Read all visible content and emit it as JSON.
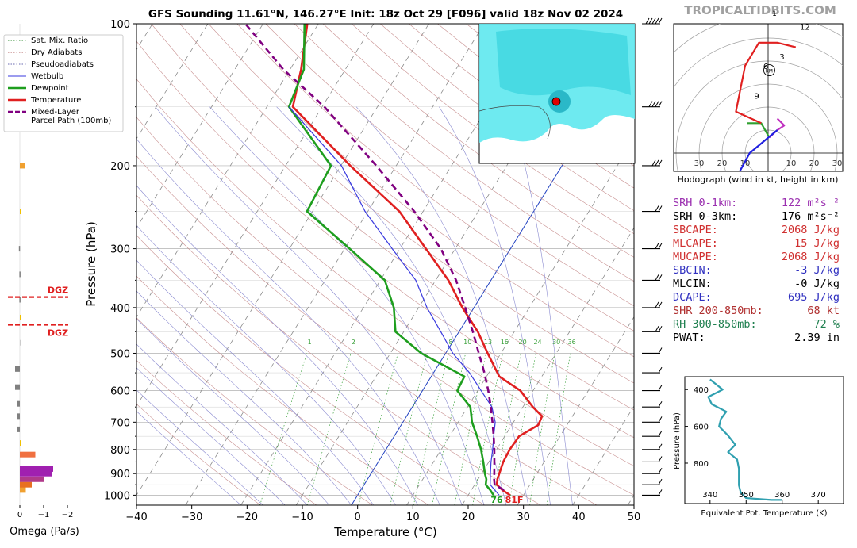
{
  "title": "GFS Sounding 11.61°N, 146.27°E Init: 18z Oct 29 [F096] valid 18z Nov 02 2024",
  "watermark": "TROPICALTIDBITS.COM",
  "legend": [
    {
      "label": "Sat. Mix. Ratio",
      "color": "#2e8b2e",
      "style": "dotted"
    },
    {
      "label": "Dry Adiabats",
      "color": "#b06060",
      "style": "dotted"
    },
    {
      "label": "Pseudoadiabats",
      "color": "#6a6ab0",
      "style": "dotted"
    },
    {
      "label": "Wetbulb",
      "color": "#3a3adf",
      "style": "solid"
    },
    {
      "label": "Dewpoint",
      "color": "#1e9e1e",
      "style": "solid"
    },
    {
      "label": "Temperature",
      "color": "#e02020",
      "style": "solid"
    },
    {
      "label": "Mixed-Layer\nParcel Path (100mb)",
      "color": "#800080",
      "style": "dashed"
    }
  ],
  "omega": {
    "xlabel": "Omega (Pa/s)",
    "ticks": [
      "0",
      "−1",
      "−2"
    ],
    "dgz_label": "DGZ"
  },
  "skewt": {
    "xlabel": "Temperature (°C)",
    "ylabel": "Pressure (hPa)",
    "surface_dewpoint_label": "76",
    "surface_temp_label": "81F",
    "mixing_ratio_labels": [
      "1",
      "2",
      "8",
      "10",
      "13",
      "16",
      "20",
      "24",
      "30",
      "36"
    ]
  },
  "hodograph": {
    "caption": "Hodograph (wind in kt, height in km)",
    "x_ticks": [
      "30",
      "20",
      "10",
      "10",
      "20",
      "30"
    ],
    "height_labels": [
      "12",
      "3",
      "6",
      "9"
    ],
    "top_label": "1",
    "km_label": "KM"
  },
  "stats": [
    {
      "label": "SRH 0-1km:",
      "value": "122 m²s⁻²",
      "color": "#9b30b0"
    },
    {
      "label": "SRH 0-3km:",
      "value": "176 m²s⁻²",
      "color": "#000000"
    },
    {
      "label": "SBCAPE:",
      "value": "2068 J/kg",
      "color": "#d03030"
    },
    {
      "label": "MLCAPE:",
      "value": "15 J/kg",
      "color": "#d03030"
    },
    {
      "label": "MUCAPE:",
      "value": "2068 J/kg",
      "color": "#d03030"
    },
    {
      "label": "SBCIN:",
      "value": "-3 J/kg",
      "color": "#3030c0"
    },
    {
      "label": "MLCIN:",
      "value": "-0 J/kg",
      "color": "#000000"
    },
    {
      "label": "DCAPE:",
      "value": "695 J/kg",
      "color": "#3030c0"
    },
    {
      "label": "SHR 200-850mb:",
      "value": "68 kt",
      "color": "#b03030"
    },
    {
      "label": "RH 300-850mb:",
      "value": "72 %",
      "color": "#208050"
    },
    {
      "label": "PWAT:",
      "value": "2.39 in",
      "color": "#000000"
    }
  ],
  "theta_e": {
    "xlabel": "Equivalent Pot. Temperature (K)",
    "ylabel": "Pressure (hPa)"
  },
  "chart_data": [
    {
      "type": "line",
      "name": "skew-t",
      "xlabel": "Temperature (°C)",
      "ylabel": "Pressure (hPa)",
      "x_ticks": [
        -40,
        -30,
        -20,
        -10,
        0,
        10,
        20,
        30,
        40,
        50
      ],
      "y_ticks": [
        100,
        200,
        300,
        400,
        500,
        600,
        700,
        800,
        900,
        1000
      ],
      "xlim": [
        -40,
        50
      ],
      "ylim": [
        1050,
        100
      ],
      "y_scale": "log",
      "series": [
        {
          "name": "Temperature",
          "color": "#e02020",
          "points": [
            [
              1000,
              27.6
            ],
            [
              975,
              25.6
            ],
            [
              950,
              24.0
            ],
            [
              925,
              23.5
            ],
            [
              900,
              23.2
            ],
            [
              850,
              22.6
            ],
            [
              800,
              22.4
            ],
            [
              750,
              22.6
            ],
            [
              710,
              24.8
            ],
            [
              680,
              24.5
            ],
            [
              650,
              21.8
            ],
            [
              600,
              17.7
            ],
            [
              560,
              12.3
            ],
            [
              500,
              7.6
            ],
            [
              450,
              3.4
            ],
            [
              400,
              -2.1
            ],
            [
              350,
              -7.7
            ],
            [
              300,
              -15.3
            ],
            [
              250,
              -24.3
            ],
            [
              200,
              -38.3
            ],
            [
              150,
              -55.3
            ],
            [
              125,
              -58.0
            ],
            [
              100,
              -62.0
            ]
          ]
        },
        {
          "name": "Dewpoint",
          "color": "#1e9e1e",
          "points": [
            [
              1000,
              24.6
            ],
            [
              975,
              23.4
            ],
            [
              950,
              22.0
            ],
            [
              925,
              21.5
            ],
            [
              900,
              20.6
            ],
            [
              850,
              19.0
            ],
            [
              800,
              17.2
            ],
            [
              750,
              15.0
            ],
            [
              700,
              12.5
            ],
            [
              650,
              10.5
            ],
            [
              600,
              6.3
            ],
            [
              560,
              6.0
            ],
            [
              500,
              -4.4
            ],
            [
              450,
              -11.5
            ],
            [
              400,
              -14.5
            ],
            [
              350,
              -19.2
            ],
            [
              300,
              -29.1
            ],
            [
              250,
              -41.0
            ],
            [
              200,
              -41.8
            ],
            [
              150,
              -56.0
            ],
            [
              125,
              -57.5
            ],
            [
              100,
              -62.5
            ]
          ]
        },
        {
          "name": "Wetbulb",
          "color": "#3a3adf",
          "points": [
            [
              1000,
              25.6
            ],
            [
              950,
              22.8
            ],
            [
              900,
              21.6
            ],
            [
              850,
              20.4
            ],
            [
              800,
              19.3
            ],
            [
              750,
              18.0
            ],
            [
              700,
              16.7
            ],
            [
              650,
              14.4
            ],
            [
              600,
              10.6
            ],
            [
              550,
              6.5
            ],
            [
              500,
              1.3
            ],
            [
              450,
              -3.3
            ],
            [
              400,
              -8.5
            ],
            [
              350,
              -13.6
            ],
            [
              300,
              -21.4
            ],
            [
              250,
              -30.5
            ],
            [
              200,
              -39.9
            ],
            [
              150,
              -56.0
            ]
          ]
        },
        {
          "name": "Mixed-Layer Parcel Path (100mb)",
          "color": "#800080",
          "dashed": true,
          "points": [
            [
              975,
              25.9
            ],
            [
              950,
              23.6
            ],
            [
              925,
              22.9
            ],
            [
              900,
              22.3
            ],
            [
              850,
              21.0
            ],
            [
              800,
              19.6
            ],
            [
              750,
              18.0
            ],
            [
              700,
              16.2
            ],
            [
              650,
              14.2
            ],
            [
              600,
              11.9
            ],
            [
              550,
              9.2
            ],
            [
              500,
              6.0
            ],
            [
              450,
              2.5
            ],
            [
              400,
              -1.6
            ],
            [
              350,
              -6.3
            ],
            [
              300,
              -12.6
            ],
            [
              250,
              -21.6
            ],
            [
              200,
              -33.6
            ],
            [
              150,
              -49.6
            ],
            [
              125,
              -61.2
            ],
            [
              100,
              -73.2
            ]
          ]
        }
      ]
    },
    {
      "type": "bar",
      "name": "omega",
      "xlabel": "Omega (Pa/s)",
      "xlim": [
        0.2,
        -2.2
      ],
      "bars": [
        {
          "p": 975,
          "v": -0.25,
          "color": "#f0a030"
        },
        {
          "p": 950,
          "v": -0.5,
          "color": "#e87020"
        },
        {
          "p": 925,
          "v": -1.0,
          "color": "#b03a8a"
        },
        {
          "p": 900,
          "v": -1.35,
          "color": "#a020b0"
        },
        {
          "p": 880,
          "v": -1.4,
          "color": "#a020b0"
        },
        {
          "p": 820,
          "v": -0.65,
          "color": "#f07040"
        },
        {
          "p": 775,
          "v": -0.05,
          "color": "#f0c000"
        },
        {
          "p": 725,
          "v": 0.1,
          "color": "#808080"
        },
        {
          "p": 680,
          "v": 0.12,
          "color": "#808080"
        },
        {
          "p": 640,
          "v": 0.12,
          "color": "#808080"
        },
        {
          "p": 590,
          "v": 0.2,
          "color": "#808080"
        },
        {
          "p": 540,
          "v": 0.2,
          "color": "#808080"
        },
        {
          "p": 475,
          "v": 0.0,
          "color": "#cccccc"
        },
        {
          "p": 420,
          "v": -0.02,
          "color": "#f0c000"
        },
        {
          "p": 385,
          "v": 0.02,
          "color": "#808080"
        },
        {
          "p": 340,
          "v": 0.02,
          "color": "#808080"
        },
        {
          "p": 300,
          "v": 0.04,
          "color": "#808080"
        },
        {
          "p": 250,
          "v": -0.06,
          "color": "#f0c000"
        },
        {
          "p": 200,
          "v": -0.2,
          "color": "#f0a030"
        }
      ],
      "dgz": [
        380,
        435
      ]
    },
    {
      "type": "line",
      "name": "hodograph",
      "xlabel": "Hodograph (wind in kt, height in km)",
      "xlim": [
        -40,
        40
      ],
      "series": [
        {
          "name": "0-1 km",
          "color": "#c030c0",
          "points": [
            [
              0.5,
              6.8
            ],
            [
              4,
              10
            ],
            [
              7,
              12
            ],
            [
              4,
              15
            ]
          ]
        },
        {
          "name": "1-3 km",
          "color": "#30a030",
          "points": [
            [
              0.5,
              6.8
            ],
            [
              -3,
              13
            ],
            [
              -9,
              13
            ]
          ]
        },
        {
          "name": "3-6 km",
          "color": "#2020e0",
          "points": [
            [
              4,
              10
            ],
            [
              -8,
              0
            ],
            [
              -20,
              -22
            ],
            [
              -8,
              -36
            ]
          ]
        },
        {
          "name": "6-12 km",
          "color": "#e02020",
          "points": [
            [
              -3,
              13
            ],
            [
              -14,
              18
            ],
            [
              -12,
              28
            ],
            [
              -10,
              38
            ],
            [
              -4,
              48
            ],
            [
              4,
              48
            ],
            [
              12,
              46
            ]
          ]
        }
      ]
    },
    {
      "type": "line",
      "name": "theta-e profile",
      "xlabel": "Equivalent Pot. Temperature (K)",
      "ylabel": "Pressure (hPa)",
      "x_ticks": [
        340,
        350,
        360,
        370
      ],
      "y_ticks": [
        400,
        600,
        800
      ],
      "xlim": [
        333,
        377
      ],
      "ylim": [
        1020,
        330
      ],
      "series": [
        {
          "name": "theta-e",
          "color": "#30a0b0",
          "points": [
            [
              340,
              345
            ],
            [
              343.5,
              400
            ],
            [
              339.5,
              440
            ],
            [
              340.5,
              480
            ],
            [
              344.5,
              520
            ],
            [
              343,
              560
            ],
            [
              342.5,
              600
            ],
            [
              345,
              650
            ],
            [
              347,
              700
            ],
            [
              345,
              740
            ],
            [
              347.5,
              780
            ],
            [
              348,
              830
            ],
            [
              348,
              880
            ],
            [
              348,
              920
            ],
            [
              348.5,
              960
            ],
            [
              350,
              990
            ],
            [
              357,
              1000
            ],
            [
              360,
              1000
            ]
          ]
        }
      ]
    }
  ]
}
